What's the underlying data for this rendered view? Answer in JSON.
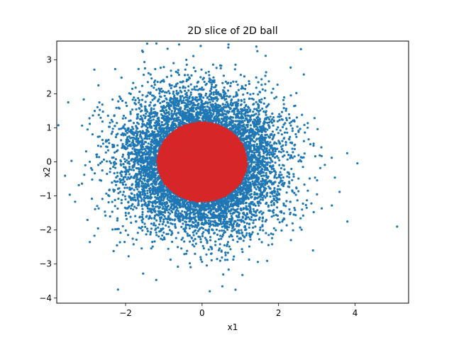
{
  "chart_data": {
    "type": "scatter",
    "title": "2D slice of 2D ball",
    "xlabel": "x1",
    "ylabel": "x2",
    "xlim": [
      -3.8,
      5.4
    ],
    "ylim": [
      -4.15,
      3.55
    ],
    "xticks": [
      -2,
      0,
      2,
      4
    ],
    "yticks": [
      -4,
      -3,
      -2,
      -1,
      0,
      1,
      2,
      3
    ],
    "xtick_labels": [
      "−2",
      "0",
      "2",
      "4"
    ],
    "ytick_labels": [
      "−4",
      "−3",
      "−2",
      "−1",
      "0",
      "1",
      "2",
      "3"
    ],
    "grid": false,
    "legend": "none",
    "series": [
      {
        "color": "#1f77b4",
        "distribution": "standard normal in 2D",
        "approx_point_count": 10000,
        "outliers": [
          {
            "x": 5.1,
            "y": -1.9
          },
          {
            "x": 3.8,
            "y": -1.75
          },
          {
            "x": -2.2,
            "y": -3.75
          },
          {
            "x": 0.2,
            "y": -3.8
          },
          {
            "x": -0.6,
            "y": 3.45
          },
          {
            "x": 2.9,
            "y": -2.6
          },
          {
            "x": -3.5,
            "y": 1.75
          }
        ]
      },
      {
        "color": "#d62728",
        "region": "points inside unit-norm ball",
        "radius": 1.18,
        "center": [
          0,
          0
        ]
      }
    ]
  }
}
